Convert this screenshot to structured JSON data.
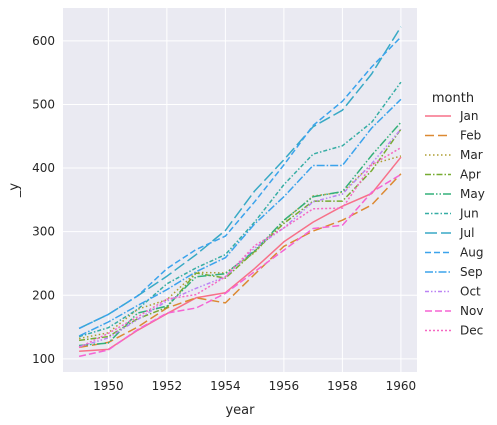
{
  "chart_data": {
    "type": "line",
    "xlabel": "year",
    "ylabel": "_y",
    "xlim": [
      1948.45,
      1960.55
    ],
    "ylim": [
      79.4,
      651.6
    ],
    "x_ticks": [
      1950,
      1952,
      1954,
      1956,
      1958,
      1960
    ],
    "y_ticks": [
      100,
      200,
      300,
      400,
      500,
      600
    ],
    "grid": true,
    "legend": {
      "title": "month",
      "placement": "right"
    },
    "x": [
      1949,
      1950,
      1951,
      1952,
      1953,
      1954,
      1955,
      1956,
      1957,
      1958,
      1959,
      1960
    ],
    "series": [
      {
        "name": "Jan",
        "color": "#f77189",
        "dash": "",
        "values": [
          112,
          115,
          145,
          171,
          196,
          204,
          242,
          284,
          315,
          340,
          360,
          417
        ]
      },
      {
        "name": "Feb",
        "color": "#dc8932",
        "dash": "9,4",
        "values": [
          118,
          126,
          150,
          180,
          196,
          188,
          233,
          277,
          301,
          318,
          342,
          391
        ]
      },
      {
        "name": "Mar",
        "color": "#ae9d31",
        "dash": "1.5,2.5",
        "values": [
          132,
          141,
          178,
          193,
          236,
          235,
          267,
          317,
          356,
          362,
          406,
          419
        ]
      },
      {
        "name": "Apr",
        "color": "#77ab31",
        "dash": "6,2,1.5,2",
        "values": [
          129,
          135,
          163,
          181,
          235,
          227,
          269,
          313,
          348,
          348,
          396,
          461
        ]
      },
      {
        "name": "May",
        "color": "#33b07a",
        "dash": "9,2,1.5,2,1.5,2",
        "values": [
          121,
          125,
          172,
          183,
          229,
          234,
          270,
          318,
          355,
          363,
          420,
          472
        ]
      },
      {
        "name": "Jun",
        "color": "#36ada4",
        "dash": "4,2,1.5,2",
        "values": [
          135,
          149,
          178,
          218,
          243,
          264,
          315,
          374,
          422,
          435,
          472,
          535
        ]
      },
      {
        "name": "Jul",
        "color": "#38a9c5",
        "dash": "12,4",
        "values": [
          148,
          170,
          199,
          230,
          264,
          302,
          364,
          413,
          465,
          491,
          548,
          622
        ]
      },
      {
        "name": "Aug",
        "color": "#3ba3ec",
        "dash": "6,3",
        "values": [
          148,
          170,
          199,
          242,
          272,
          293,
          347,
          405,
          467,
          505,
          559,
          606
        ]
      },
      {
        "name": "Sep",
        "color": "#3ba3ec",
        "dash": "8,2,1.5,2",
        "values": [
          136,
          158,
          184,
          209,
          237,
          259,
          312,
          355,
          404,
          404,
          463,
          508
        ]
      },
      {
        "name": "Oct",
        "color": "#bb83f4",
        "dash": "4,2,1.5,2,1.5,2",
        "values": [
          119,
          133,
          162,
          191,
          211,
          229,
          274,
          306,
          347,
          359,
          407,
          461
        ]
      },
      {
        "name": "Nov",
        "color": "#f564d4",
        "dash": "7,3",
        "values": [
          104,
          114,
          146,
          172,
          180,
          203,
          237,
          271,
          305,
          310,
          362,
          390
        ]
      },
      {
        "name": "Dec",
        "color": "#f668c2",
        "dash": "2,2",
        "values": [
          118,
          140,
          166,
          194,
          201,
          229,
          278,
          306,
          336,
          337,
          405,
          432
        ]
      }
    ]
  }
}
